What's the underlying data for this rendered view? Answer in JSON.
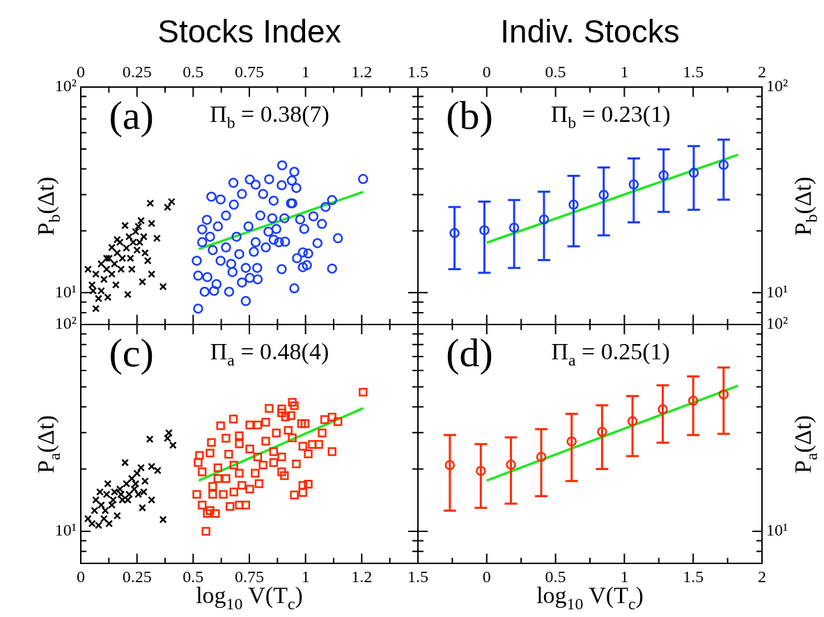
{
  "chart_data": [
    {
      "type": "scatter",
      "title": "Stocks Index",
      "ylabel": "P$_{b}$(Δt)",
      "annotations": [
        "(a)",
        "Π$_{b}$ = 0.38(7)"
      ],
      "log": "y",
      "xlim": [
        0,
        1.5
      ],
      "xticks": [
        0,
        {
          "value": 0.125,
          "label": null
        },
        0.25,
        {
          "value": 0.375,
          "label": null
        },
        0.5,
        {
          "value": 0.625,
          "label": null
        },
        0.75,
        {
          "value": 0.875,
          "label": null
        },
        1,
        {
          "value": 1.125,
          "label": null
        },
        {
          "value": 1.25,
          "label": "1.2"
        },
        {
          "value": 1.375,
          "label": null
        },
        1.5
      ],
      "ylim": [
        7,
        100
      ],
      "yticks": [
        {
          "value": 8,
          "label": null
        },
        {
          "value": 9,
          "label": null
        },
        {
          "value": 10,
          "label": "10¹"
        },
        {
          "value": 20,
          "label": null
        },
        {
          "value": 30,
          "label": null
        },
        {
          "value": 40,
          "label": null
        },
        {
          "value": 50,
          "label": null
        },
        {
          "value": 60,
          "label": null
        },
        {
          "value": 70,
          "label": null
        },
        {
          "value": 80,
          "label": null
        },
        {
          "value": 90,
          "label": null
        },
        {
          "value": 100,
          "label": "10²"
        }
      ],
      "series": [
        {
          "type": "scatter",
          "marker": "cross",
          "color": "#000000",
          "x": [
            0.032,
            0.05,
            0.067,
            0.079,
            0.091,
            0.103,
            0.115,
            0.12,
            0.126,
            0.138,
            0.15,
            0.162,
            0.174,
            0.179,
            0.185,
            0.197,
            0.203,
            0.209,
            0.215,
            0.221,
            0.233,
            0.244,
            0.25,
            0.256,
            0.262,
            0.268,
            0.274,
            0.28,
            0.286,
            0.298,
            0.309,
            0.315,
            0.315,
            0.339,
            0.366,
            0.386,
            0.404,
            0.067,
            0.091,
            0.115,
            0.138,
            0.162,
            0.055,
            0.156,
            0.227
          ],
          "values": [
            13.0,
            10.9,
            8.36,
            9.36,
            10.2,
            11.6,
            13.0,
            9.5,
            14.7,
            12.3,
            13.8,
            15.6,
            17.6,
            13.0,
            14.7,
            21.2,
            16.5,
            9.8,
            18.7,
            14.7,
            17.6,
            19.8,
            16.1,
            21.0,
            17.6,
            22.4,
            11.3,
            18.7,
            15.6,
            14.3,
            27.2,
            21.7,
            12.3,
            18.4,
            10.7,
            26.0,
            27.7,
            12.3,
            13.8,
            14.7,
            16.6,
            18.1,
            10.2,
            10.9,
            13.0
          ]
        },
        {
          "type": "scatter",
          "marker": "circle",
          "color": "#1a3cff",
          "x": [
            0.522,
            0.54,
            0.561,
            0.581,
            0.622,
            0.679,
            0.752,
            0.778,
            0.838,
            0.896,
            0.95,
            0.939,
            0.959,
            0.894,
            1.256,
            1.118,
            1.089,
            1.035,
            1.073,
            0.976,
            0.994,
            1.144,
            1.053,
            0.909,
            0.988,
            1.012,
            0.962,
            1.006,
            0.988,
            1.118,
            0.894,
            0.95,
            0.734,
            0.734,
            0.785,
            0.787,
            0.717,
            0.752,
            0.66,
            0.593,
            0.551,
            0.522,
            0.516,
            0.54,
            0.575,
            0.61,
            0.646,
            0.681,
            0.717,
            0.811,
            0.858,
            0.935,
            0.852,
            0.87,
            0.858,
            0.823,
            0.778,
            0.77,
            0.705,
            0.669,
            0.622,
            0.587,
            0.604,
            0.563,
            0.675,
            0.906,
            0.941,
            0.799,
            0.746,
            0.693,
            0.646,
            0.882,
            0.835
          ],
          "values": [
            8.36,
            20.3,
            22.6,
            29.3,
            28.4,
            34.2,
            35.5,
            33.5,
            35.6,
            41.6,
            38.7,
            35.1,
            32.3,
            33.3,
            35.7,
            28.2,
            26.1,
            23.5,
            21.6,
            22.7,
            20.4,
            18.4,
            17.4,
            17.7,
            15.7,
            15.5,
            14.7,
            13.6,
            13.3,
            13.1,
            13.0,
            10.5,
            9.1,
            13.2,
            13.2,
            11.6,
            11.2,
            11.8,
            10.1,
            10.2,
            10.1,
            12.1,
            14.3,
            17.6,
            18.7,
            21.0,
            23.7,
            26.8,
            30.2,
            30.2,
            28.0,
            27.2,
            23.0,
            20.4,
            18.1,
            16.6,
            17.6,
            15.8,
            15.4,
            13.8,
            14.3,
            16.1,
            11.0,
            11.9,
            12.6,
            23.0,
            27.2,
            23.7,
            21.0,
            18.7,
            16.6,
            17.6,
            19.8
          ]
        },
        {
          "type": "line",
          "marker": "none",
          "color": "#22e622",
          "x": [
            0.525,
            1.256
          ],
          "values": [
            16.3,
            30.9
          ]
        }
      ]
    },
    {
      "type": "scatter",
      "title": "Indiv. Stocks",
      "y2label": "P$_{b}$(Δt)",
      "annotations": [
        "(b)",
        "Π$_{b}$ = 0.23(1)"
      ],
      "log": "y2",
      "xlim": [
        -0.5,
        2
      ],
      "xticks": [
        {
          "value": -0.5,
          "label": null
        },
        {
          "value": -0.25,
          "label": null
        },
        0,
        {
          "value": 0.25,
          "label": null
        },
        0.5,
        {
          "value": 0.75,
          "label": null
        },
        1,
        {
          "value": 1.25,
          "label": null
        },
        1.5,
        {
          "value": 1.75,
          "label": null
        },
        2
      ],
      "y2lim": [
        7,
        100
      ],
      "y2ticks": [
        {
          "value": 8,
          "label": null
        },
        {
          "value": 9,
          "label": null
        },
        {
          "value": 10,
          "label": "10¹"
        },
        {
          "value": 20,
          "label": null
        },
        {
          "value": 30,
          "label": null
        },
        {
          "value": 40,
          "label": null
        },
        {
          "value": 50,
          "label": null
        },
        {
          "value": 60,
          "label": null
        },
        {
          "value": 70,
          "label": null
        },
        {
          "value": 80,
          "label": null
        },
        {
          "value": 90,
          "label": null
        },
        {
          "value": 100,
          "label": "10²"
        }
      ],
      "series": [
        {
          "type": "scatter",
          "marker": "circle",
          "color": "#1a3cff",
          "axis": "y2",
          "x": [
            -0.234,
            -0.017,
            0.199,
            0.416,
            0.631,
            0.85,
            1.068,
            1.285,
            1.504,
            1.721
          ],
          "values": [
            19.5,
            20.1,
            20.7,
            22.7,
            26.8,
            29.9,
            33.6,
            37.2,
            38.3,
            41.8
          ],
          "errors": [
            [
              13.0,
              26.1
            ],
            [
              12.5,
              27.7
            ],
            [
              13.2,
              28.2
            ],
            [
              14.4,
              31.0
            ],
            [
              16.8,
              37.0
            ],
            [
              19.0,
              40.6
            ],
            [
              22.0,
              45.0
            ],
            [
              24.7,
              49.8
            ],
            [
              25.3,
              51.6
            ],
            [
              28.3,
              55.5
            ]
          ]
        },
        {
          "type": "line",
          "marker": "none",
          "color": "#22e622",
          "axis": "y2",
          "x": [
            0,
            1.826
          ],
          "values": [
            17.5,
            46.9
          ]
        }
      ]
    },
    {
      "type": "scatter",
      "xlabel": "log$_{10}$ V(T$_{c}$)",
      "ylabel": "P$_{a}$(Δt)",
      "annotations": [
        "(c)",
        "Π$_{a}$ = 0.48(4)"
      ],
      "log": "y",
      "xlim": [
        0,
        1.5
      ],
      "xticks": [
        0,
        {
          "value": 0.125,
          "label": null
        },
        0.25,
        {
          "value": 0.375,
          "label": null
        },
        0.5,
        {
          "value": 0.625,
          "label": null
        },
        0.75,
        {
          "value": 0.875,
          "label": null
        },
        1,
        {
          "value": 1.125,
          "label": null
        },
        {
          "value": 1.25,
          "label": "1.2"
        },
        {
          "value": 1.375,
          "label": null
        },
        1.5
      ],
      "ylim": [
        7,
        100
      ],
      "yticks": [
        {
          "value": 8,
          "label": null
        },
        {
          "value": 9,
          "label": null
        },
        {
          "value": 10,
          "label": "10¹"
        },
        {
          "value": 20,
          "label": null
        },
        {
          "value": 30,
          "label": null
        },
        {
          "value": 40,
          "label": null
        },
        {
          "value": 50,
          "label": null
        },
        {
          "value": 60,
          "label": null
        },
        {
          "value": 70,
          "label": null
        },
        {
          "value": 80,
          "label": null
        },
        {
          "value": 90,
          "label": null
        },
        {
          "value": 100,
          "label": "10²"
        }
      ],
      "series": [
        {
          "type": "scatter",
          "marker": "cross",
          "color": "#000000",
          "x": [
            0.032,
            0.05,
            0.079,
            0.061,
            0.091,
            0.067,
            0.103,
            0.115,
            0.126,
            0.138,
            0.15,
            0.162,
            0.174,
            0.185,
            0.197,
            0.203,
            0.215,
            0.227,
            0.238,
            0.25,
            0.256,
            0.268,
            0.274,
            0.286,
            0.307,
            0.315,
            0.315,
            0.342,
            0.366,
            0.392,
            0.41,
            0.386,
            0.109,
            0.144,
            0.179,
            0.209,
            0.244,
            0.28,
            0.085,
            0.12
          ],
          "values": [
            11.5,
            10.9,
            10.7,
            12.6,
            13.4,
            14.2,
            11.5,
            15.1,
            10.9,
            13.4,
            15.5,
            11.9,
            16.0,
            14.2,
            21.5,
            17.0,
            15.1,
            18.0,
            16.0,
            19.1,
            15.1,
            20.3,
            13.0,
            17.5,
            27.9,
            14.2,
            20.6,
            19.7,
            11.4,
            29.9,
            26.1,
            28.2,
            12.6,
            14.2,
            15.1,
            14.2,
            17.0,
            15.5,
            15.5,
            17.0
          ]
        },
        {
          "type": "scatter",
          "marker": "square",
          "color": "#ff2a00",
          "x": [
            1.256,
            0.941,
            0.95,
            0.838,
            0.894,
            0.894,
            0.935,
            0.911,
            0.679,
            1.118,
            1.085,
            1.144,
            0.622,
            0.752,
            0.787,
            0.982,
            0.998,
            0.823,
            0.87,
            0.923,
            1.074,
            1.059,
            1.03,
            0.988,
            1.012,
            1.118,
            0.941,
            0.581,
            0.646,
            0.705,
            0.528,
            0.522,
            0.54,
            0.575,
            0.61,
            0.658,
            0.705,
            0.752,
            0.787,
            0.823,
            0.858,
            0.858,
            0.894,
            0.959,
            0.894,
            0.906,
            0.988,
            1.012,
            0.988,
            0.95,
            0.793,
            0.752,
            0.717,
            0.681,
            0.634,
            0.587,
            0.516,
            0.54,
            0.575,
            0.599,
            0.563,
            0.664,
            0.705,
            0.734,
            0.557,
            0.61,
            0.646,
            0.705,
            0.776,
            0.811,
            0.681,
            0.587
          ],
          "values": [
            47.1,
            42.1,
            40.5,
            39.3,
            39.1,
            37.4,
            36.3,
            35.7,
            34.9,
            35.7,
            34.7,
            33.9,
            32.4,
            32.7,
            32.7,
            33.2,
            33.2,
            33.7,
            29.9,
            30.8,
            29.9,
            26.3,
            26.3,
            25.8,
            23.7,
            24.3,
            28.3,
            26.9,
            28.2,
            29.0,
            23.3,
            21.5,
            19.4,
            23.9,
            20.3,
            23.6,
            26.5,
            25.0,
            22.9,
            27.3,
            24.3,
            21.5,
            22.9,
            21.2,
            19.4,
            18.6,
            16.7,
            16.9,
            15.4,
            15.0,
            17.0,
            16.0,
            16.7,
            15.5,
            15.1,
            15.1,
            15.1,
            13.4,
            12.6,
            12.2,
            12.2,
            13.2,
            13.4,
            13.4,
            10.0,
            18.0,
            18.0,
            19.1,
            19.1,
            20.9,
            20.9,
            16.5
          ]
        },
        {
          "type": "line",
          "marker": "none",
          "color": "#22e622",
          "x": [
            0.525,
            1.256
          ],
          "values": [
            17.6,
            39.4
          ]
        }
      ]
    },
    {
      "type": "scatter",
      "xlabel": "log$_{10}$ V(T$_{c}$)",
      "y2label": "P$_{a}$(Δt)",
      "annotations": [
        "(d)",
        "Π$_{a}$ = 0.25(1)"
      ],
      "log": "y2",
      "xlim": [
        -0.5,
        2
      ],
      "xticks": [
        {
          "value": -0.5,
          "label": null
        },
        {
          "value": -0.25,
          "label": null
        },
        0,
        {
          "value": 0.25,
          "label": null
        },
        0.5,
        {
          "value": 0.75,
          "label": null
        },
        1,
        {
          "value": 1.25,
          "label": null
        },
        1.5,
        {
          "value": 1.75,
          "label": null
        },
        2
      ],
      "y2lim": [
        7,
        100
      ],
      "y2ticks": [
        {
          "value": 8,
          "label": null
        },
        {
          "value": 9,
          "label": null
        },
        {
          "value": 10,
          "label": "10¹"
        },
        {
          "value": 20,
          "label": null
        },
        {
          "value": 30,
          "label": null
        },
        {
          "value": 40,
          "label": null
        },
        {
          "value": 50,
          "label": null
        },
        {
          "value": 60,
          "label": null
        },
        {
          "value": 70,
          "label": null
        },
        {
          "value": 80,
          "label": null
        },
        {
          "value": 90,
          "label": null
        },
        {
          "value": 100,
          "label": "10²"
        }
      ],
      "series": [
        {
          "type": "scatter",
          "marker": "circle",
          "color": "#ff2a00",
          "axis": "y2",
          "x": [
            -0.268,
            -0.043,
            0.176,
            0.396,
            0.617,
            0.838,
            1.059,
            1.279,
            1.5,
            1.721
          ],
          "values": [
            20.9,
            19.6,
            21.0,
            22.9,
            27.2,
            30.3,
            34.1,
            38.9,
            42.8,
            45.9
          ],
          "errors": [
            [
              12.6,
              29.2
            ],
            [
              13.0,
              26.4
            ],
            [
              13.6,
              28.5
            ],
            [
              14.8,
              31.2
            ],
            [
              17.5,
              37.0
            ],
            [
              20.0,
              40.7
            ],
            [
              23.1,
              45.1
            ],
            [
              26.8,
              50.8
            ],
            [
              29.2,
              56.1
            ],
            [
              29.6,
              61.9
            ]
          ]
        },
        {
          "type": "line",
          "marker": "none",
          "color": "#22e622",
          "axis": "y2",
          "x": [
            0,
            1.826
          ],
          "values": [
            17.6,
            50.6
          ]
        }
      ]
    }
  ]
}
